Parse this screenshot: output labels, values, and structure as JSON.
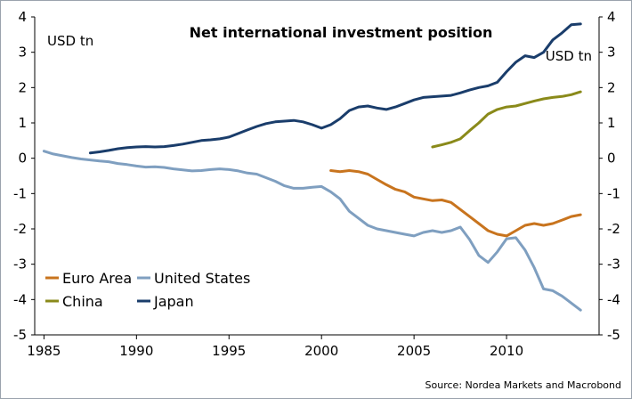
{
  "chart_data": {
    "type": "line",
    "title": "Net international investment position",
    "unit_left": "USD tn",
    "unit_right": "USD tn",
    "source": "Source: Nordea Markets and Macrobond",
    "xlim": [
      1984.5,
      2015
    ],
    "ylim": [
      -5,
      4
    ],
    "x_ticks": [
      "1985",
      "1990",
      "1995",
      "2000",
      "2005",
      "2010"
    ],
    "x_tick_values": [
      1985,
      1990,
      1995,
      2000,
      2005,
      2010
    ],
    "y_ticks": [
      "4",
      "3",
      "2",
      "1",
      "0",
      "-1",
      "-2",
      "-3",
      "-4",
      "-5"
    ],
    "y_tick_values": [
      4,
      3,
      2,
      1,
      0,
      -1,
      -2,
      -3,
      -4,
      -5
    ],
    "grid": false,
    "legend_position": "bottom-left",
    "series": [
      {
        "name": "Euro Area",
        "color": "#c8741e",
        "x": [
          2000.5,
          2001,
          2001.5,
          2002,
          2002.5,
          2003,
          2003.5,
          2004,
          2004.5,
          2005,
          2005.5,
          2006,
          2006.5,
          2007,
          2007.5,
          2008,
          2008.5,
          2009,
          2009.5,
          2010,
          2010.5,
          2011,
          2011.5,
          2012,
          2012.5,
          2013,
          2013.5,
          2014
        ],
        "values": [
          -0.35,
          -0.38,
          -0.35,
          -0.38,
          -0.45,
          -0.6,
          -0.75,
          -0.88,
          -0.95,
          -1.1,
          -1.15,
          -1.2,
          -1.18,
          -1.25,
          -1.45,
          -1.65,
          -1.85,
          -2.05,
          -2.15,
          -2.2,
          -2.05,
          -1.9,
          -1.85,
          -1.9,
          -1.85,
          -1.75,
          -1.65,
          -1.6
        ]
      },
      {
        "name": "United States",
        "color": "#7f9fc0",
        "x": [
          1985,
          1985.5,
          1986,
          1986.5,
          1987,
          1987.5,
          1988,
          1988.5,
          1989,
          1989.5,
          1990,
          1990.5,
          1991,
          1991.5,
          1992,
          1992.5,
          1993,
          1993.5,
          1994,
          1994.5,
          1995,
          1995.5,
          1996,
          1996.5,
          1997,
          1997.5,
          1998,
          1998.5,
          1999,
          1999.5,
          2000,
          2000.5,
          2001,
          2001.5,
          2002,
          2002.5,
          2003,
          2003.5,
          2004,
          2004.5,
          2005,
          2005.5,
          2006,
          2006.5,
          2007,
          2007.5,
          2008,
          2008.5,
          2009,
          2009.5,
          2010,
          2010.5,
          2011,
          2011.5,
          2012,
          2012.5,
          2013,
          2013.5,
          2014
        ],
        "values": [
          0.2,
          0.12,
          0.07,
          0.02,
          -0.02,
          -0.05,
          -0.08,
          -0.1,
          -0.15,
          -0.18,
          -0.22,
          -0.25,
          -0.24,
          -0.26,
          -0.3,
          -0.33,
          -0.36,
          -0.35,
          -0.32,
          -0.3,
          -0.32,
          -0.36,
          -0.42,
          -0.45,
          -0.55,
          -0.65,
          -0.78,
          -0.85,
          -0.85,
          -0.82,
          -0.8,
          -0.95,
          -1.15,
          -1.5,
          -1.7,
          -1.9,
          -2.0,
          -2.05,
          -2.1,
          -2.15,
          -2.2,
          -2.1,
          -2.05,
          -2.1,
          -2.05,
          -1.95,
          -2.3,
          -2.75,
          -2.95,
          -2.65,
          -2.28,
          -2.25,
          -2.6,
          -3.1,
          -3.7,
          -3.75,
          -3.9,
          -4.1,
          -4.3
        ]
      },
      {
        "name": "China",
        "color": "#8a8a1a",
        "x": [
          2006,
          2006.5,
          2007,
          2007.5,
          2008,
          2008.5,
          2009,
          2009.5,
          2010,
          2010.5,
          2011,
          2011.5,
          2012,
          2012.5,
          2013,
          2013.5,
          2014
        ],
        "values": [
          0.32,
          0.38,
          0.45,
          0.55,
          0.78,
          1.0,
          1.25,
          1.38,
          1.45,
          1.48,
          1.55,
          1.62,
          1.68,
          1.72,
          1.75,
          1.8,
          1.88
        ]
      },
      {
        "name": "Japan",
        "color": "#1a3d6b",
        "x": [
          1987.5,
          1988,
          1988.5,
          1989,
          1989.5,
          1990,
          1990.5,
          1991,
          1991.5,
          1992,
          1992.5,
          1993,
          1993.5,
          1994,
          1994.5,
          1995,
          1995.5,
          1996,
          1996.5,
          1997,
          1997.5,
          1998,
          1998.5,
          1999,
          1999.5,
          2000,
          2000.5,
          2001,
          2001.5,
          2002,
          2002.5,
          2003,
          2003.5,
          2004,
          2004.5,
          2005,
          2005.5,
          2006,
          2006.5,
          2007,
          2007.5,
          2008,
          2008.5,
          2009,
          2009.5,
          2010,
          2010.5,
          2011,
          2011.5,
          2012,
          2012.5,
          2013,
          2013.5,
          2014
        ],
        "values": [
          0.15,
          0.18,
          0.22,
          0.27,
          0.3,
          0.32,
          0.33,
          0.32,
          0.33,
          0.36,
          0.4,
          0.45,
          0.5,
          0.52,
          0.55,
          0.6,
          0.7,
          0.8,
          0.9,
          0.98,
          1.03,
          1.05,
          1.07,
          1.03,
          0.95,
          0.85,
          0.95,
          1.12,
          1.35,
          1.45,
          1.48,
          1.42,
          1.38,
          1.45,
          1.55,
          1.65,
          1.72,
          1.74,
          1.76,
          1.78,
          1.85,
          1.93,
          2.0,
          2.05,
          2.15,
          2.45,
          2.72,
          2.9,
          2.85,
          3.0,
          3.35,
          3.55,
          3.78,
          3.8
        ]
      }
    ],
    "legend": [
      {
        "name": "Euro Area",
        "color": "#c8741e"
      },
      {
        "name": "United States",
        "color": "#7f9fc0"
      },
      {
        "name": "China",
        "color": "#8a8a1a"
      },
      {
        "name": "Japan",
        "color": "#1a3d6b"
      }
    ]
  }
}
